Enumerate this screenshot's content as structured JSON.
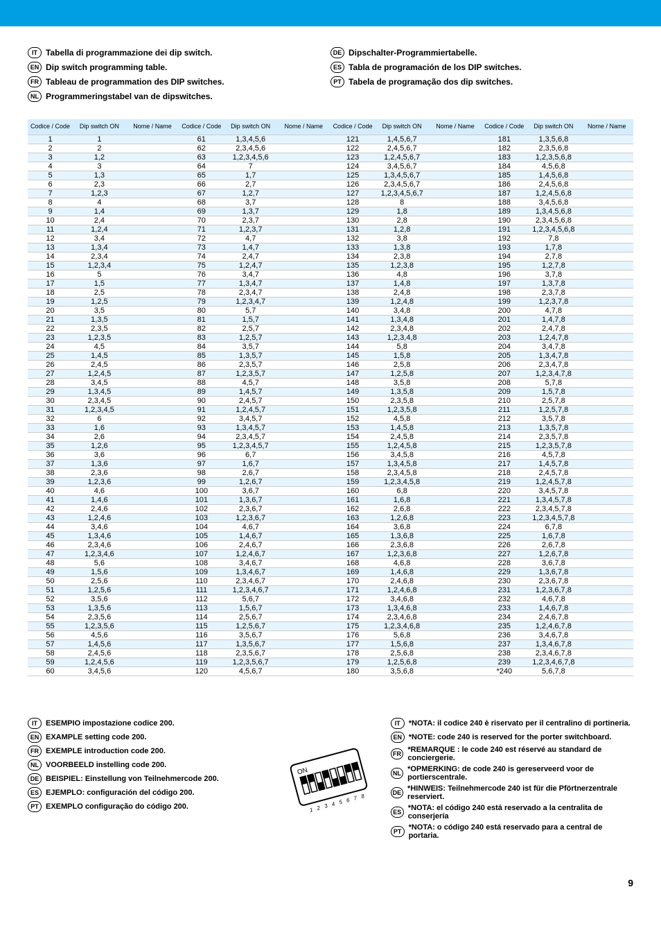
{
  "header_titles_left": [
    {
      "lang": "IT",
      "text": "Tabella di programmazione dei dip switch."
    },
    {
      "lang": "EN",
      "text": "Dip switch programming table."
    },
    {
      "lang": "FR",
      "text": "Tableau de programmation des DIP switches."
    },
    {
      "lang": "NL",
      "text": "Programmeringstabel van de dipswitches."
    }
  ],
  "header_titles_right": [
    {
      "lang": "DE",
      "text": "Dipschalter-Programmiertabelle."
    },
    {
      "lang": "ES",
      "text": "Tabla de programación de los DIP switches."
    },
    {
      "lang": "PT",
      "text": "Tabela de programação dos dip switches."
    }
  ],
  "table_header": {
    "code": "Codice /\nCode",
    "dip": "Dip switch ON",
    "name": "Nome / Name"
  },
  "rows": [
    {
      "c1": "1",
      "d1": "1",
      "c2": "61",
      "d2": "1,3,4,5,6",
      "c3": "121",
      "d3": "1,4,5,6,7",
      "c4": "181",
      "d4": "1,3,5,6,8"
    },
    {
      "c1": "2",
      "d1": "2",
      "c2": "62",
      "d2": "2,3,4,5,6",
      "c3": "122",
      "d3": "2,4,5,6,7",
      "c4": "182",
      "d4": "2,3,5,6,8"
    },
    {
      "c1": "3",
      "d1": "1,2",
      "c2": "63",
      "d2": "1,2,3,4,5,6",
      "c3": "123",
      "d3": "1,2,4,5,6,7",
      "c4": "183",
      "d4": "1,2,3,5,6,8"
    },
    {
      "c1": "4",
      "d1": "3",
      "c2": "64",
      "d2": "7",
      "c3": "124",
      "d3": "3,4,5,6,7",
      "c4": "184",
      "d4": "4,5,6,8"
    },
    {
      "c1": "5",
      "d1": "1,3",
      "c2": "65",
      "d2": "1,7",
      "c3": "125",
      "d3": "1,3,4,5,6,7",
      "c4": "185",
      "d4": "1,4,5,6,8"
    },
    {
      "c1": "6",
      "d1": "2,3",
      "c2": "66",
      "d2": "2,7",
      "c3": "126",
      "d3": "2,3,4,5,6,7",
      "c4": "186",
      "d4": "2,4,5,6,8"
    },
    {
      "c1": "7",
      "d1": "1,2,3",
      "c2": "67",
      "d2": "1,2,7",
      "c3": "127",
      "d3": "1,2,3,4,5,6,7",
      "c4": "187",
      "d4": "1,2,4,5,6,8"
    },
    {
      "c1": "8",
      "d1": "4",
      "c2": "68",
      "d2": "3,7",
      "c3": "128",
      "d3": "8",
      "c4": "188",
      "d4": "3,4,5,6,8"
    },
    {
      "c1": "9",
      "d1": "1,4",
      "c2": "69",
      "d2": "1,3,7",
      "c3": "129",
      "d3": "1,8",
      "c4": "189",
      "d4": "1,3,4,5,6,8"
    },
    {
      "c1": "10",
      "d1": "2,4",
      "c2": "70",
      "d2": "2,3,7",
      "c3": "130",
      "d3": "2,8",
      "c4": "190",
      "d4": "2,3,4,5,6,8"
    },
    {
      "c1": "11",
      "d1": "1,2,4",
      "c2": "71",
      "d2": "1,2,3,7",
      "c3": "131",
      "d3": "1,2,8",
      "c4": "191",
      "d4": "1,2,3,4,5,6,8"
    },
    {
      "c1": "12",
      "d1": "3,4",
      "c2": "72",
      "d2": "4,7",
      "c3": "132",
      "d3": "3,8",
      "c4": "192",
      "d4": "7,8"
    },
    {
      "c1": "13",
      "d1": "1,3,4",
      "c2": "73",
      "d2": "1,4,7",
      "c3": "133",
      "d3": "1,3,8",
      "c4": "193",
      "d4": "1,7,8"
    },
    {
      "c1": "14",
      "d1": "2,3,4",
      "c2": "74",
      "d2": "2,4,7",
      "c3": "134",
      "d3": "2,3,8",
      "c4": "194",
      "d4": "2,7,8"
    },
    {
      "c1": "15",
      "d1": "1,2,3,4",
      "c2": "75",
      "d2": "1,2,4,7",
      "c3": "135",
      "d3": "1,2,3,8",
      "c4": "195",
      "d4": "1,2,7,8"
    },
    {
      "c1": "16",
      "d1": "5",
      "c2": "76",
      "d2": "3,4,7",
      "c3": "136",
      "d3": "4,8",
      "c4": "196",
      "d4": "3,7,8"
    },
    {
      "c1": "17",
      "d1": "1,5",
      "c2": "77",
      "d2": "1,3,4,7",
      "c3": "137",
      "d3": "1,4,8",
      "c4": "197",
      "d4": "1,3,7,8"
    },
    {
      "c1": "18",
      "d1": "2,5",
      "c2": "78",
      "d2": "2,3,4,7",
      "c3": "138",
      "d3": "2,4,8",
      "c4": "198",
      "d4": "2,3,7,8"
    },
    {
      "c1": "19",
      "d1": "1,2,5",
      "c2": "79",
      "d2": "1,2,3,4,7",
      "c3": "139",
      "d3": "1,2,4,8",
      "c4": "199",
      "d4": "1,2,3,7,8"
    },
    {
      "c1": "20",
      "d1": "3,5",
      "c2": "80",
      "d2": "5,7",
      "c3": "140",
      "d3": "3,4,8",
      "c4": "200",
      "d4": "4,7,8"
    },
    {
      "c1": "21",
      "d1": "1,3,5",
      "c2": "81",
      "d2": "1,5,7",
      "c3": "141",
      "d3": "1,3,4,8",
      "c4": "201",
      "d4": "1,4,7,8"
    },
    {
      "c1": "22",
      "d1": "2,3,5",
      "c2": "82",
      "d2": "2,5,7",
      "c3": "142",
      "d3": "2,3,4,8",
      "c4": "202",
      "d4": "2,4,7,8"
    },
    {
      "c1": "23",
      "d1": "1,2,3,5",
      "c2": "83",
      "d2": "1,2,5,7",
      "c3": "143",
      "d3": "1,2,3,4,8",
      "c4": "203",
      "d4": "1,2,4,7,8"
    },
    {
      "c1": "24",
      "d1": "4,5",
      "c2": "84",
      "d2": "3,5,7",
      "c3": "144",
      "d3": "5,8",
      "c4": "204",
      "d4": "3,4,7,8"
    },
    {
      "c1": "25",
      "d1": "1,4,5",
      "c2": "85",
      "d2": "1,3,5,7",
      "c3": "145",
      "d3": "1,5,8",
      "c4": "205",
      "d4": "1,3,4,7,8"
    },
    {
      "c1": "26",
      "d1": "2,4,5",
      "c2": "86",
      "d2": "2,3,5,7",
      "c3": "146",
      "d3": "2,5,8",
      "c4": "206",
      "d4": "2,3,4,7,8"
    },
    {
      "c1": "27",
      "d1": "1,2,4,5",
      "c2": "87",
      "d2": "1,2,3,5,7",
      "c3": "147",
      "d3": "1,2,5,8",
      "c4": "207",
      "d4": "1,2,3,4,7,8"
    },
    {
      "c1": "28",
      "d1": "3,4,5",
      "c2": "88",
      "d2": "4,5,7",
      "c3": "148",
      "d3": "3,5,8",
      "c4": "208",
      "d4": "5,7,8"
    },
    {
      "c1": "29",
      "d1": "1,3,4,5",
      "c2": "89",
      "d2": "1,4,5,7",
      "c3": "149",
      "d3": "1,3,5,8",
      "c4": "209",
      "d4": "1,5,7,8"
    },
    {
      "c1": "30",
      "d1": "2,3,4,5",
      "c2": "90",
      "d2": "2,4,5,7",
      "c3": "150",
      "d3": "2,3,5,8",
      "c4": "210",
      "d4": "2,5,7,8"
    },
    {
      "c1": "31",
      "d1": "1,2,3,4,5",
      "c2": "91",
      "d2": "1,2,4,5,7",
      "c3": "151",
      "d3": "1,2,3,5,8",
      "c4": "211",
      "d4": "1,2,5,7,8"
    },
    {
      "c1": "32",
      "d1": "6",
      "c2": "92",
      "d2": "3,4,5,7",
      "c3": "152",
      "d3": "4,5,8",
      "c4": "212",
      "d4": "3,5,7,8"
    },
    {
      "c1": "33",
      "d1": "1,6",
      "c2": "93",
      "d2": "1,3,4,5,7",
      "c3": "153",
      "d3": "1,4,5,8",
      "c4": "213",
      "d4": "1,3,5,7,8"
    },
    {
      "c1": "34",
      "d1": "2,6",
      "c2": "94",
      "d2": "2,3,4,5,7",
      "c3": "154",
      "d3": "2,4,5,8",
      "c4": "214",
      "d4": "2,3,5,7,8"
    },
    {
      "c1": "35",
      "d1": "1,2,6",
      "c2": "95",
      "d2": "1,2,3,4,5,7",
      "c3": "155",
      "d3": "1,2,4,5,8",
      "c4": "215",
      "d4": "1,2,3,5,7,8"
    },
    {
      "c1": "36",
      "d1": "3,6",
      "c2": "96",
      "d2": "6,7",
      "c3": "156",
      "d3": "3,4,5,8",
      "c4": "216",
      "d4": "4,5,7,8"
    },
    {
      "c1": "37",
      "d1": "1,3,6",
      "c2": "97",
      "d2": "1,6,7",
      "c3": "157",
      "d3": "1,3,4,5,8",
      "c4": "217",
      "d4": "1,4,5,7,8"
    },
    {
      "c1": "38",
      "d1": "2,3,6",
      "c2": "98",
      "d2": "2,6,7",
      "c3": "158",
      "d3": "2,3,4,5,8",
      "c4": "218",
      "d4": "2,4,5,7,8"
    },
    {
      "c1": "39",
      "d1": "1,2,3,6",
      "c2": "99",
      "d2": "1,2,6,7",
      "c3": "159",
      "d3": "1,2,3,4,5,8",
      "c4": "219",
      "d4": "1,2,4,5,7,8"
    },
    {
      "c1": "40",
      "d1": "4,6",
      "c2": "100",
      "d2": "3,6,7",
      "c3": "160",
      "d3": "6,8",
      "c4": "220",
      "d4": "3,4,5,7,8"
    },
    {
      "c1": "41",
      "d1": "1,4,6",
      "c2": "101",
      "d2": "1,3,6,7",
      "c3": "161",
      "d3": "1,6,8",
      "c4": "221",
      "d4": "1,3,4,5,7,8"
    },
    {
      "c1": "42",
      "d1": "2,4,6",
      "c2": "102",
      "d2": "2,3,6,7",
      "c3": "162",
      "d3": "2,6,8",
      "c4": "222",
      "d4": "2,3,4,5,7,8"
    },
    {
      "c1": "43",
      "d1": "1,2,4,6",
      "c2": "103",
      "d2": "1,2,3,6,7",
      "c3": "163",
      "d3": "1,2,6,8",
      "c4": "223",
      "d4": "1,2,3,4,5,7,8"
    },
    {
      "c1": "44",
      "d1": "3,4,6",
      "c2": "104",
      "d2": "4,6,7",
      "c3": "164",
      "d3": "3,6,8",
      "c4": "224",
      "d4": "6,7,8"
    },
    {
      "c1": "45",
      "d1": "1,3,4,6",
      "c2": "105",
      "d2": "1,4,6,7",
      "c3": "165",
      "d3": "1,3,6,8",
      "c4": "225",
      "d4": "1,6,7,8"
    },
    {
      "c1": "46",
      "d1": "2,3,4,6",
      "c2": "106",
      "d2": "2,4,6,7",
      "c3": "166",
      "d3": "2,3,6,8",
      "c4": "226",
      "d4": "2,6,7,8"
    },
    {
      "c1": "47",
      "d1": "1,2,3,4,6",
      "c2": "107",
      "d2": "1,2,4,6,7",
      "c3": "167",
      "d3": "1,2,3,6,8",
      "c4": "227",
      "d4": "1,2,6,7,8"
    },
    {
      "c1": "48",
      "d1": "5,6",
      "c2": "108",
      "d2": "3,4,6,7",
      "c3": "168",
      "d3": "4,6,8",
      "c4": "228",
      "d4": "3,6,7,8"
    },
    {
      "c1": "49",
      "d1": "1,5,6",
      "c2": "109",
      "d2": "1,3,4,6,7",
      "c3": "169",
      "d3": "1,4,6,8",
      "c4": "229",
      "d4": "1,3,6,7,8"
    },
    {
      "c1": "50",
      "d1": "2,5,6",
      "c2": "110",
      "d2": "2,3,4,6,7",
      "c3": "170",
      "d3": "2,4,6,8",
      "c4": "230",
      "d4": "2,3,6,7,8"
    },
    {
      "c1": "51",
      "d1": "1,2,5,6",
      "c2": "111",
      "d2": "1,2,3,4,6,7",
      "c3": "171",
      "d3": "1,2,4,6,8",
      "c4": "231",
      "d4": "1,2,3,6,7,8"
    },
    {
      "c1": "52",
      "d1": "3,5,6",
      "c2": "112",
      "d2": "5,6,7",
      "c3": "172",
      "d3": "3,4,6,8",
      "c4": "232",
      "d4": "4,6,7,8"
    },
    {
      "c1": "53",
      "d1": "1,3,5,6",
      "c2": "113",
      "d2": "1,5,6,7",
      "c3": "173",
      "d3": "1,3,4,6,8",
      "c4": "233",
      "d4": "1,4,6,7,8"
    },
    {
      "c1": "54",
      "d1": "2,3,5,6",
      "c2": "114",
      "d2": "2,5,6,7",
      "c3": "174",
      "d3": "2,3,4,6,8",
      "c4": "234",
      "d4": "2,4,6,7,8"
    },
    {
      "c1": "55",
      "d1": "1,2,3,5,6",
      "c2": "115",
      "d2": "1,2,5,6,7",
      "c3": "175",
      "d3": "1,2,3,4,6,8",
      "c4": "235",
      "d4": "1,2,4,6,7,8"
    },
    {
      "c1": "56",
      "d1": "4,5,6",
      "c2": "116",
      "d2": "3,5,6,7",
      "c3": "176",
      "d3": "5,6,8",
      "c4": "236",
      "d4": "3,4,6,7,8"
    },
    {
      "c1": "57",
      "d1": "1,4,5,6",
      "c2": "117",
      "d2": "1,3,5,6,7",
      "c3": "177",
      "d3": "1,5,6,8",
      "c4": "237",
      "d4": "1,3,4,6,7,8"
    },
    {
      "c1": "58",
      "d1": "2,4,5,6",
      "c2": "118",
      "d2": "2,3,5,6,7",
      "c3": "178",
      "d3": "2,5,6,8",
      "c4": "238",
      "d4": "2,3,4,6,7,8"
    },
    {
      "c1": "59",
      "d1": "1,2,4,5,6",
      "c2": "119",
      "d2": "1,2,3,5,6,7",
      "c3": "179",
      "d3": "1,2,5,6,8",
      "c4": "239",
      "d4": "1,2,3,4,6,7,8"
    },
    {
      "c1": "60",
      "d1": "3,4,5,6",
      "c2": "120",
      "d2": "4,5,6,7",
      "c3": "180",
      "d3": "3,5,6,8",
      "c4": "*240",
      "d4": "5,6,7,8"
    }
  ],
  "examples_left": [
    {
      "lang": "IT",
      "text": "ESEMPIO impostazione codice 200."
    },
    {
      "lang": "EN",
      "text": "EXAMPLE setting code 200."
    },
    {
      "lang": "FR",
      "text": "EXEMPLE introduction code 200."
    },
    {
      "lang": "NL",
      "text": "VOORBEELD instelling code 200."
    },
    {
      "lang": "DE",
      "text": "BEISPIEL: Einstellung von Teilnehmercode 200."
    },
    {
      "lang": "ES",
      "text": "EJEMPLO: configuración del código 200."
    },
    {
      "lang": "PT",
      "text": "EXEMPLO configuração do código 200."
    }
  ],
  "notes_right": [
    {
      "lang": "IT",
      "text": "*NOTA: il codice 240 è riservato per il centralino di portineria."
    },
    {
      "lang": "EN",
      "text": "*NOTE: code 240 is reserved for the porter switchboard."
    },
    {
      "lang": "FR",
      "text": "*REMARQUE : le code 240 est réservé au standard de conciergerie."
    },
    {
      "lang": "NL",
      "text": "*OPMERKING: de code 240 is gereserveerd voor de portierscentrale."
    },
    {
      "lang": "DE",
      "text": "*HINWEIS: Teilnehmercode 240 ist für die Pförtnerzentrale reserviert."
    },
    {
      "lang": "ES",
      "text": "*NOTA: el código 240 está reservado a la centralita de conserjería"
    },
    {
      "lang": "PT",
      "text": "*NOTA: o código 240 está reservado para a central de portaria."
    }
  ],
  "page_number": "9"
}
